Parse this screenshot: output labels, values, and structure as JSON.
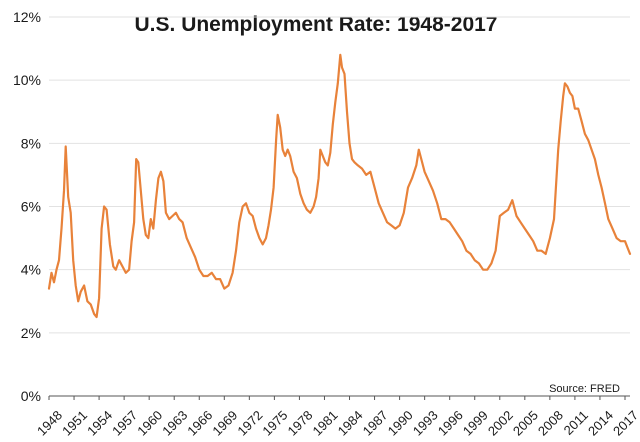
{
  "chart_data": {
    "type": "line",
    "title": "U.S. Unemployment Rate: 1948-2017",
    "xlabel": "",
    "ylabel": "",
    "source_note": "Source: FRED",
    "xlim": [
      1948,
      2017.6
    ],
    "ylim": [
      0,
      12
    ],
    "y_ticks": [
      0,
      2,
      4,
      6,
      8,
      10,
      12
    ],
    "y_tick_labels": [
      "0%",
      "2%",
      "4%",
      "6%",
      "8%",
      "10%",
      "12%"
    ],
    "x_ticks": [
      1948,
      1951,
      1954,
      1957,
      1960,
      1963,
      1966,
      1969,
      1972,
      1975,
      1978,
      1981,
      1984,
      1987,
      1990,
      1993,
      1996,
      1999,
      2002,
      2005,
      2008,
      2011,
      2014,
      2017
    ],
    "x_tick_labels": [
      "1948",
      "1951",
      "1954",
      "1957",
      "1960",
      "1963",
      "1966",
      "1969",
      "1972",
      "1975",
      "1978",
      "1981",
      "1984",
      "1987",
      "1990",
      "1993",
      "1996",
      "1999",
      "2002",
      "2005",
      "2008",
      "2011",
      "2014",
      "2017"
    ],
    "grid": true,
    "color": "#e8823a",
    "series": [
      {
        "x": [
          1948.0,
          1948.3,
          1948.6,
          1948.9,
          1949.2,
          1949.5,
          1949.8,
          1950.0,
          1950.3,
          1950.6,
          1950.9,
          1951.2,
          1951.5,
          1951.8,
          1952.2,
          1952.6,
          1953.0,
          1953.4,
          1953.7,
          1954.0,
          1954.3,
          1954.6,
          1954.9,
          1955.3,
          1955.7,
          1956.0,
          1956.4,
          1956.8,
          1957.2,
          1957.6,
          1957.9,
          1958.2,
          1958.45,
          1958.7,
          1959.0,
          1959.3,
          1959.6,
          1959.9,
          1960.2,
          1960.5,
          1960.8,
          1961.1,
          1961.4,
          1961.7,
          1962.0,
          1962.4,
          1962.8,
          1963.2,
          1963.6,
          1964.0,
          1964.5,
          1965.0,
          1965.5,
          1966.0,
          1966.5,
          1967.0,
          1967.5,
          1968.0,
          1968.5,
          1969.0,
          1969.5,
          1970.0,
          1970.4,
          1970.8,
          1971.2,
          1971.6,
          1972.0,
          1972.4,
          1972.8,
          1973.2,
          1973.6,
          1974.0,
          1974.3,
          1974.6,
          1974.9,
          1975.2,
          1975.4,
          1975.7,
          1976.0,
          1976.3,
          1976.6,
          1976.9,
          1977.3,
          1977.7,
          1978.1,
          1978.5,
          1978.9,
          1979.3,
          1979.7,
          1980.0,
          1980.3,
          1980.5,
          1980.8,
          1981.1,
          1981.4,
          1981.7,
          1982.0,
          1982.3,
          1982.6,
          1982.9,
          1983.1,
          1983.4,
          1983.7,
          1984.0,
          1984.3,
          1984.6,
          1985.0,
          1985.5,
          1986.0,
          1986.5,
          1987.0,
          1987.5,
          1988.0,
          1988.5,
          1989.0,
          1989.5,
          1990.0,
          1990.5,
          1991.0,
          1991.5,
          1992.0,
          1992.3,
          1992.6,
          1993.0,
          1993.5,
          1994.0,
          1994.5,
          1995.0,
          1995.5,
          1996.0,
          1996.5,
          1997.0,
          1997.5,
          1998.0,
          1998.5,
          1999.0,
          1999.5,
          2000.0,
          2000.5,
          2001.0,
          2001.5,
          2002.0,
          2002.5,
          2003.0,
          2003.5,
          2004.0,
          2004.5,
          2005.0,
          2005.5,
          2006.0,
          2006.5,
          2007.0,
          2007.5,
          2008.0,
          2008.5,
          2009.0,
          2009.3,
          2009.6,
          2009.8,
          2010.1,
          2010.4,
          2010.7,
          2011.0,
          2011.4,
          2011.8,
          2012.2,
          2012.6,
          2013.0,
          2013.4,
          2013.8,
          2014.2,
          2014.6,
          2015.0,
          2015.5,
          2016.0,
          2016.5,
          2017.0,
          2017.3,
          2017.6
        ],
        "y": [
          3.4,
          3.9,
          3.6,
          4.0,
          4.3,
          5.3,
          6.5,
          7.9,
          6.3,
          5.8,
          4.3,
          3.5,
          3.0,
          3.3,
          3.5,
          3.0,
          2.9,
          2.6,
          2.5,
          3.1,
          5.3,
          6.0,
          5.9,
          4.8,
          4.1,
          4.0,
          4.3,
          4.1,
          3.9,
          4.0,
          4.9,
          5.5,
          7.5,
          7.4,
          6.5,
          5.6,
          5.1,
          5.0,
          5.6,
          5.3,
          6.2,
          6.9,
          7.1,
          6.8,
          5.8,
          5.6,
          5.7,
          5.8,
          5.6,
          5.5,
          5.0,
          4.7,
          4.4,
          4.0,
          3.8,
          3.8,
          3.9,
          3.7,
          3.7,
          3.4,
          3.5,
          3.9,
          4.6,
          5.5,
          6.0,
          6.1,
          5.8,
          5.7,
          5.3,
          5.0,
          4.8,
          5.0,
          5.4,
          5.9,
          6.6,
          8.1,
          8.9,
          8.5,
          7.8,
          7.6,
          7.8,
          7.6,
          7.1,
          6.9,
          6.4,
          6.1,
          5.9,
          5.8,
          6.0,
          6.3,
          6.9,
          7.8,
          7.6,
          7.4,
          7.3,
          7.7,
          8.6,
          9.3,
          9.9,
          10.8,
          10.4,
          10.2,
          9.0,
          8.0,
          7.5,
          7.4,
          7.3,
          7.2,
          7.0,
          7.1,
          6.6,
          6.1,
          5.8,
          5.5,
          5.4,
          5.3,
          5.4,
          5.8,
          6.6,
          6.9,
          7.3,
          7.8,
          7.5,
          7.1,
          6.8,
          6.5,
          6.1,
          5.6,
          5.6,
          5.5,
          5.3,
          5.1,
          4.9,
          4.6,
          4.5,
          4.3,
          4.2,
          4.0,
          4.0,
          4.2,
          4.6,
          5.7,
          5.8,
          5.9,
          6.2,
          5.7,
          5.5,
          5.3,
          5.1,
          4.9,
          4.6,
          4.6,
          4.5,
          5.0,
          5.6,
          7.8,
          8.7,
          9.5,
          9.9,
          9.8,
          9.6,
          9.5,
          9.1,
          9.1,
          8.7,
          8.3,
          8.1,
          7.8,
          7.5,
          7.0,
          6.6,
          6.1,
          5.6,
          5.3,
          5.0,
          4.9,
          4.9,
          4.7,
          4.5
        ]
      }
    ]
  }
}
